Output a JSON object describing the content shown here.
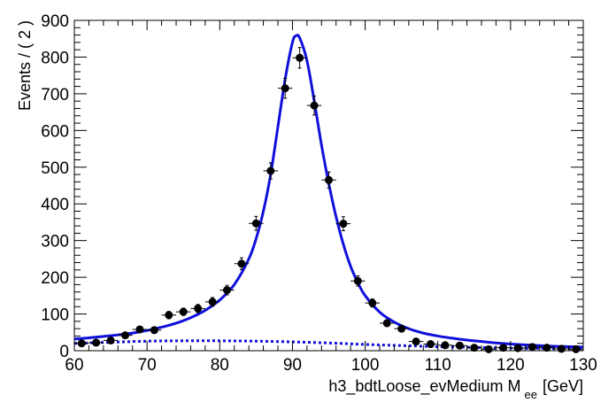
{
  "chart_data": {
    "type": "scatter",
    "xlabel": "h3_bdtLoose_evMedium  M",
    "xlabel_sub": "ee",
    "xlabel_unit": "[GeV]",
    "ylabel": "Events / ( 2 )",
    "xlim": [
      60,
      130
    ],
    "ylim": [
      0,
      900
    ],
    "x_ticks": [
      60,
      70,
      80,
      90,
      100,
      110,
      120,
      130
    ],
    "y_ticks": [
      0,
      100,
      200,
      300,
      400,
      500,
      600,
      700,
      800,
      900
    ],
    "x_bin_half_width": 1,
    "series": [
      {
        "kind": "data-points",
        "color": "#000000",
        "x": [
          61,
          63,
          65,
          67,
          69,
          71,
          73,
          75,
          77,
          79,
          81,
          83,
          85,
          87,
          89,
          91,
          93,
          95,
          97,
          99,
          101,
          103,
          105,
          107,
          109,
          111,
          113,
          115,
          117,
          119,
          121,
          123,
          125,
          127,
          129
        ],
        "y": [
          20,
          22,
          28,
          42,
          58,
          56,
          97,
          106,
          115,
          133,
          165,
          237,
          347,
          490,
          715,
          798,
          668,
          465,
          346,
          190,
          130,
          75,
          60,
          25,
          18,
          15,
          14,
          8,
          4,
          8,
          7,
          10,
          8,
          5,
          4
        ],
        "yerr": [
          5,
          5,
          5,
          7,
          8,
          8,
          10,
          10,
          11,
          12,
          13,
          16,
          19,
          22,
          27,
          28,
          26,
          22,
          19,
          14,
          11,
          9,
          8,
          5,
          4,
          4,
          4,
          3,
          2,
          3,
          3,
          3,
          3,
          2,
          2
        ]
      },
      {
        "kind": "fit-total",
        "color": "#1010dd",
        "x": [
          60,
          62,
          64,
          66,
          68,
          70,
          72,
          74,
          76,
          78,
          80,
          82,
          84,
          85,
          86,
          87,
          88,
          89,
          90,
          90.5,
          91,
          92,
          93,
          94,
          95,
          96,
          97,
          98,
          99,
          100,
          102,
          104,
          106,
          108,
          110,
          112,
          114,
          116,
          118,
          120,
          122,
          124,
          126,
          128,
          130
        ],
        "y": [
          32,
          35,
          39,
          43,
          48,
          55,
          64,
          75,
          90,
          110,
          138,
          180,
          250,
          305,
          380,
          480,
          610,
          740,
          840,
          858,
          852,
          790,
          680,
          560,
          455,
          365,
          290,
          230,
          185,
          150,
          105,
          78,
          60,
          48,
          40,
          34,
          29,
          25,
          21,
          18,
          16,
          14,
          12,
          11,
          10
        ]
      },
      {
        "kind": "fit-background",
        "color": "#1010dd",
        "x": [
          60,
          65,
          70,
          75,
          80,
          85,
          90,
          95,
          100,
          105,
          110,
          115,
          120,
          125,
          130
        ],
        "y": [
          20,
          23,
          26,
          27,
          27,
          26,
          24,
          21,
          17,
          14,
          11,
          9,
          7,
          6,
          5
        ]
      }
    ]
  }
}
